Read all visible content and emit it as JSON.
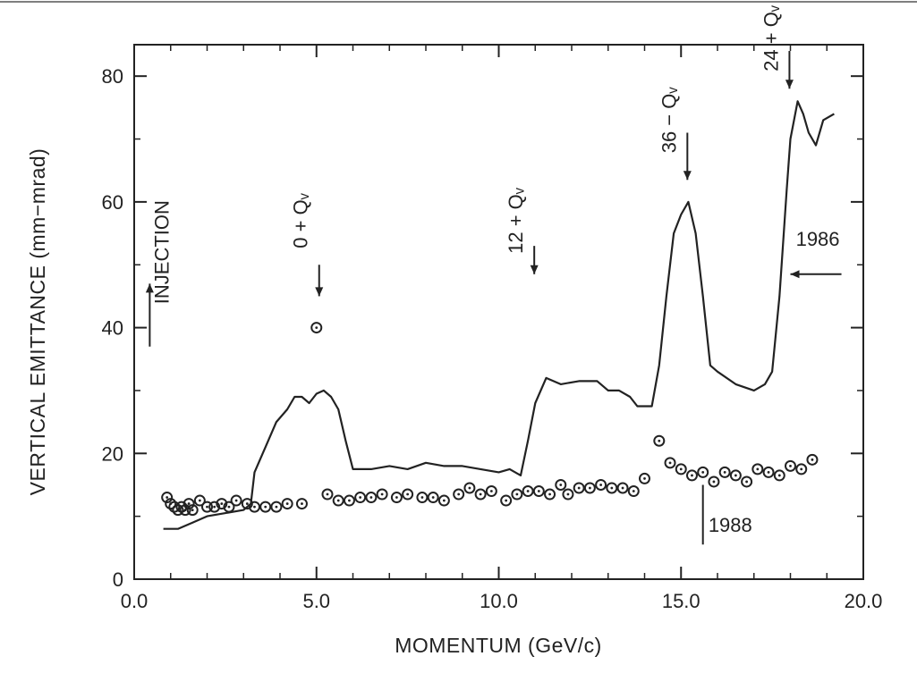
{
  "chart_data": {
    "type": "scatter",
    "xlabel": "MOMENTUM  (GeV/c)",
    "ylabel": "VERTICAL  EMITTANCE  (mm−mrad)",
    "xlim": [
      0,
      20
    ],
    "ylim": [
      0,
      85
    ],
    "x_ticks": [
      0,
      5,
      10,
      15,
      20
    ],
    "x_tick_labels": [
      "0.0",
      "5.0",
      "10.0",
      "15.0",
      "20.0"
    ],
    "y_ticks": [
      0,
      20,
      40,
      60,
      80
    ],
    "y_tick_labels": [
      "0",
      "20",
      "40",
      "60",
      "80"
    ],
    "grid": false,
    "series": [
      {
        "name": "1986",
        "style": "line",
        "points": [
          [
            0.8,
            8
          ],
          [
            1.2,
            8
          ],
          [
            1.6,
            9
          ],
          [
            2.0,
            10
          ],
          [
            2.5,
            10.5
          ],
          [
            3.0,
            11
          ],
          [
            3.2,
            12
          ],
          [
            3.3,
            17
          ],
          [
            3.6,
            21
          ],
          [
            3.9,
            25
          ],
          [
            4.2,
            27
          ],
          [
            4.4,
            29
          ],
          [
            4.6,
            29
          ],
          [
            4.8,
            28
          ],
          [
            5.0,
            29.5
          ],
          [
            5.2,
            30
          ],
          [
            5.4,
            29
          ],
          [
            5.6,
            27
          ],
          [
            5.8,
            22
          ],
          [
            6.0,
            17.5
          ],
          [
            6.5,
            17.5
          ],
          [
            7.0,
            18
          ],
          [
            7.5,
            17.5
          ],
          [
            8.0,
            18.5
          ],
          [
            8.5,
            18
          ],
          [
            9.0,
            18
          ],
          [
            9.5,
            17.5
          ],
          [
            10.0,
            17
          ],
          [
            10.3,
            17.5
          ],
          [
            10.6,
            16.5
          ],
          [
            10.8,
            22
          ],
          [
            11.0,
            28
          ],
          [
            11.3,
            32
          ],
          [
            11.7,
            31
          ],
          [
            12.2,
            31.5
          ],
          [
            12.7,
            31.5
          ],
          [
            13.0,
            30
          ],
          [
            13.3,
            30
          ],
          [
            13.6,
            29
          ],
          [
            13.8,
            27.5
          ],
          [
            14.2,
            27.5
          ],
          [
            14.4,
            34
          ],
          [
            14.6,
            45
          ],
          [
            14.8,
            55
          ],
          [
            15.0,
            58
          ],
          [
            15.2,
            60
          ],
          [
            15.4,
            55
          ],
          [
            15.6,
            45
          ],
          [
            15.8,
            34
          ],
          [
            16.0,
            33
          ],
          [
            16.5,
            31
          ],
          [
            17.0,
            30
          ],
          [
            17.3,
            31
          ],
          [
            17.5,
            33
          ],
          [
            17.7,
            45
          ],
          [
            17.9,
            62
          ],
          [
            18.0,
            70
          ],
          [
            18.2,
            76
          ],
          [
            18.35,
            74
          ],
          [
            18.5,
            71
          ],
          [
            18.7,
            69
          ],
          [
            18.9,
            73
          ],
          [
            19.2,
            74
          ]
        ]
      },
      {
        "name": "1988",
        "style": "markers",
        "points": [
          [
            0.9,
            13
          ],
          [
            1.0,
            12
          ],
          [
            1.1,
            11.5
          ],
          [
            1.2,
            11
          ],
          [
            1.3,
            11.5
          ],
          [
            1.4,
            11
          ],
          [
            1.5,
            12
          ],
          [
            1.6,
            11
          ],
          [
            1.8,
            12.5
          ],
          [
            2.0,
            11.5
          ],
          [
            2.2,
            11.5
          ],
          [
            2.4,
            12
          ],
          [
            2.6,
            11.5
          ],
          [
            2.8,
            12.5
          ],
          [
            3.1,
            12
          ],
          [
            3.3,
            11.5
          ],
          [
            3.6,
            11.5
          ],
          [
            3.9,
            11.5
          ],
          [
            4.2,
            12
          ],
          [
            4.6,
            12
          ],
          [
            5.0,
            40
          ],
          [
            5.3,
            13.5
          ],
          [
            5.6,
            12.5
          ],
          [
            5.9,
            12.5
          ],
          [
            6.2,
            13
          ],
          [
            6.5,
            13
          ],
          [
            6.8,
            13.5
          ],
          [
            7.2,
            13
          ],
          [
            7.5,
            13.5
          ],
          [
            7.9,
            13
          ],
          [
            8.2,
            13
          ],
          [
            8.5,
            12.5
          ],
          [
            8.9,
            13.5
          ],
          [
            9.2,
            14.5
          ],
          [
            9.5,
            13.5
          ],
          [
            9.8,
            14
          ],
          [
            10.2,
            12.5
          ],
          [
            10.5,
            13.5
          ],
          [
            10.8,
            14
          ],
          [
            11.1,
            14
          ],
          [
            11.4,
            13.5
          ],
          [
            11.7,
            15
          ],
          [
            11.9,
            13.5
          ],
          [
            12.2,
            14.5
          ],
          [
            12.5,
            14.5
          ],
          [
            12.8,
            15
          ],
          [
            13.1,
            14.5
          ],
          [
            13.4,
            14.5
          ],
          [
            13.7,
            14
          ],
          [
            14.0,
            16
          ],
          [
            14.4,
            22
          ],
          [
            14.7,
            18.5
          ],
          [
            15.0,
            17.5
          ],
          [
            15.3,
            16.5
          ],
          [
            15.6,
            17
          ],
          [
            15.9,
            15.5
          ],
          [
            16.2,
            17
          ],
          [
            16.5,
            16.5
          ],
          [
            16.8,
            15.5
          ],
          [
            17.1,
            17.5
          ],
          [
            17.4,
            17
          ],
          [
            17.7,
            16.5
          ],
          [
            18.0,
            18
          ],
          [
            18.3,
            17.5
          ],
          [
            18.6,
            19
          ]
        ]
      }
    ],
    "annotations": [
      {
        "text": "INJECTION",
        "x": 0.5,
        "y": 52
      },
      {
        "text": "0 + Qᵥ",
        "x": 5.0,
        "y": 57
      },
      {
        "text": "12 + Qᵥ",
        "x": 10.9,
        "y": 57
      },
      {
        "text": "36 − Qᵥ",
        "x": 15.1,
        "y": 73
      },
      {
        "text": "24 + Qᵥ",
        "x": 17.9,
        "y": 86
      },
      {
        "text": "1986",
        "x": 18.7,
        "y": 51.5
      },
      {
        "text": "1988",
        "x": 16.3,
        "y": 10
      }
    ]
  }
}
